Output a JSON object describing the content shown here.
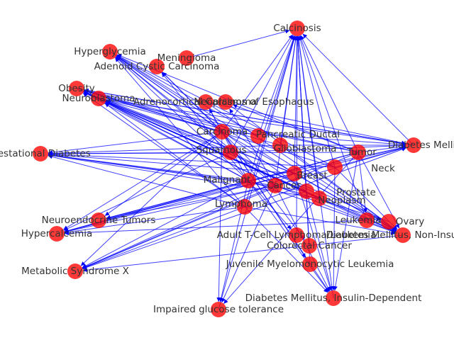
{
  "graph": {
    "edge_color": "#0000ff",
    "node_color": "#ff0000",
    "label_color": "#333333",
    "nodes": [
      {
        "id": "calcinosis",
        "label": "Calcinosis"
      },
      {
        "id": "hyperglycemia",
        "label": "Hyperglycemia"
      },
      {
        "id": "meningioma",
        "label": "Meningioma"
      },
      {
        "id": "adenoid-cystic",
        "label": "Adenoid Cystic Carcinoma"
      },
      {
        "id": "obesity",
        "label": "Obesity"
      },
      {
        "id": "neuroblastoma",
        "label": "Neuroblastoma"
      },
      {
        "id": "adrenal",
        "label": "Adrenocortical Carcinoma"
      },
      {
        "id": "esophagus",
        "label": "Neoplasms of Esophagus"
      },
      {
        "id": "gestational",
        "label": "Gestational Diabetes"
      },
      {
        "id": "dm-type2",
        "label": "Diabetes Mellitus"
      },
      {
        "id": "carcinoma",
        "label": "Carcinoma"
      },
      {
        "id": "pancreatic-ductal",
        "label": "Pancreatic Ductal"
      },
      {
        "id": "neuroendocrine",
        "label": "Neuroendocrine Tumors"
      },
      {
        "id": "hypercalcemia",
        "label": "Hypercalcemia"
      },
      {
        "id": "metabolic",
        "label": "Metabolic Syndrome X"
      },
      {
        "id": "impaired-glucose",
        "label": "Impaired glucose tolerance"
      },
      {
        "id": "dm-insulin-dep",
        "label": "Diabetes Mellitus, Insulin-Dependent"
      },
      {
        "id": "jmml",
        "label": "Juvenile Myelomonocytic Leukemia"
      },
      {
        "id": "colorectal",
        "label": "Colorectal Cancer"
      },
      {
        "id": "atll",
        "label": "Adult T-Cell Lymphoma/Leukemia"
      },
      {
        "id": "dm-non-insulin",
        "label": "Diabetes Mellitus, Non-Insulin"
      },
      {
        "id": "ovary",
        "label": "Ovary"
      },
      {
        "id": "leukemia",
        "label": "Leukemia"
      },
      {
        "id": "neoplasm",
        "label": "Neoplasm"
      },
      {
        "id": "prostate",
        "label": "Prostate"
      },
      {
        "id": "neck",
        "label": "Neck"
      },
      {
        "id": "tumor",
        "label": "Tumor"
      },
      {
        "id": "squamous",
        "label": "Squamous"
      },
      {
        "id": "breast",
        "label": "Breast"
      },
      {
        "id": "malignant",
        "label": "Malignant"
      },
      {
        "id": "cancer",
        "label": "Cancer"
      },
      {
        "id": "lymphoma",
        "label": "Lymphoma"
      },
      {
        "id": "glioblastoma",
        "label": "Glioblastoma"
      }
    ],
    "edges": [
      [
        "carcinoma",
        "calcinosis"
      ],
      [
        "pancreatic-ductal",
        "calcinosis"
      ],
      [
        "malignant",
        "calcinosis"
      ],
      [
        "cancer",
        "calcinosis"
      ],
      [
        "breast",
        "calcinosis"
      ],
      [
        "tumor",
        "calcinosis"
      ],
      [
        "neck",
        "calcinosis"
      ],
      [
        "prostate",
        "calcinosis"
      ],
      [
        "neoplasm",
        "calcinosis"
      ],
      [
        "leukemia",
        "calcinosis"
      ],
      [
        "lymphoma",
        "calcinosis"
      ],
      [
        "squamous",
        "calcinosis"
      ],
      [
        "glioblastoma",
        "calcinosis"
      ],
      [
        "colorectal",
        "calcinosis"
      ],
      [
        "jmml",
        "calcinosis"
      ],
      [
        "dm-insulin-dep",
        "calcinosis"
      ],
      [
        "impaired-glucose",
        "calcinosis"
      ],
      [
        "meningioma",
        "calcinosis"
      ],
      [
        "dm-type2",
        "calcinosis"
      ],
      [
        "atll",
        "calcinosis"
      ],
      [
        "carcinoma",
        "hyperglycemia"
      ],
      [
        "malignant",
        "hyperglycemia"
      ],
      [
        "cancer",
        "hyperglycemia"
      ],
      [
        "breast",
        "hyperglycemia"
      ],
      [
        "tumor",
        "hyperglycemia"
      ],
      [
        "neck",
        "hyperglycemia"
      ],
      [
        "squamous",
        "hyperglycemia"
      ],
      [
        "lymphoma",
        "hyperglycemia"
      ],
      [
        "pancreatic-ductal",
        "hyperglycemia"
      ],
      [
        "prostate",
        "hyperglycemia"
      ],
      [
        "carcinoma",
        "obesity"
      ],
      [
        "malignant",
        "obesity"
      ],
      [
        "cancer",
        "obesity"
      ],
      [
        "breast",
        "obesity"
      ],
      [
        "tumor",
        "obesity"
      ],
      [
        "neck",
        "obesity"
      ],
      [
        "squamous",
        "obesity"
      ],
      [
        "lymphoma",
        "obesity"
      ],
      [
        "pancreatic-ductal",
        "obesity"
      ],
      [
        "prostate",
        "obesity"
      ],
      [
        "glioblastoma",
        "obesity"
      ],
      [
        "leukemia",
        "obesity"
      ],
      [
        "neoplasm",
        "obesity"
      ],
      [
        "ovary",
        "obesity"
      ],
      [
        "dm-type2",
        "obesity"
      ],
      [
        "carcinoma",
        "neuroblastoma"
      ],
      [
        "malignant",
        "neuroblastoma"
      ],
      [
        "cancer",
        "neuroblastoma"
      ],
      [
        "breast",
        "neuroblastoma"
      ],
      [
        "tumor",
        "neuroblastoma"
      ],
      [
        "lymphoma",
        "neuroblastoma"
      ],
      [
        "carcinoma",
        "gestational"
      ],
      [
        "malignant",
        "gestational"
      ],
      [
        "cancer",
        "gestational"
      ],
      [
        "breast",
        "gestational"
      ],
      [
        "tumor",
        "gestational"
      ],
      [
        "neck",
        "gestational"
      ],
      [
        "squamous",
        "gestational"
      ],
      [
        "lymphoma",
        "gestational"
      ],
      [
        "prostate",
        "gestational"
      ],
      [
        "neoplasm",
        "gestational"
      ],
      [
        "glioblastoma",
        "gestational"
      ],
      [
        "carcinoma",
        "dm-type2"
      ],
      [
        "malignant",
        "dm-type2"
      ],
      [
        "cancer",
        "dm-type2"
      ],
      [
        "breast",
        "dm-type2"
      ],
      [
        "tumor",
        "dm-type2"
      ],
      [
        "neck",
        "dm-type2"
      ],
      [
        "squamous",
        "dm-type2"
      ],
      [
        "lymphoma",
        "dm-type2"
      ],
      [
        "glioblastoma",
        "dm-type2"
      ],
      [
        "neuroblastoma",
        "dm-type2"
      ],
      [
        "adrenal",
        "dm-type2"
      ],
      [
        "obesity",
        "dm-type2"
      ],
      [
        "carcinoma",
        "hypercalcemia"
      ],
      [
        "malignant",
        "hypercalcemia"
      ],
      [
        "cancer",
        "hypercalcemia"
      ],
      [
        "breast",
        "hypercalcemia"
      ],
      [
        "tumor",
        "hypercalcemia"
      ],
      [
        "lymphoma",
        "hypercalcemia"
      ],
      [
        "squamous",
        "hypercalcemia"
      ],
      [
        "leukemia",
        "hypercalcemia"
      ],
      [
        "carcinoma",
        "metabolic"
      ],
      [
        "malignant",
        "metabolic"
      ],
      [
        "cancer",
        "metabolic"
      ],
      [
        "breast",
        "metabolic"
      ],
      [
        "tumor",
        "metabolic"
      ],
      [
        "lymphoma",
        "metabolic"
      ],
      [
        "prostate",
        "metabolic"
      ],
      [
        "dm-non-insulin",
        "metabolic"
      ],
      [
        "carcinoma",
        "impaired-glucose"
      ],
      [
        "malignant",
        "impaired-glucose"
      ],
      [
        "cancer",
        "impaired-glucose"
      ],
      [
        "tumor",
        "impaired-glucose"
      ],
      [
        "carcinoma",
        "dm-insulin-dep"
      ],
      [
        "malignant",
        "dm-insulin-dep"
      ],
      [
        "cancer",
        "dm-insulin-dep"
      ],
      [
        "breast",
        "dm-insulin-dep"
      ],
      [
        "tumor",
        "dm-insulin-dep"
      ],
      [
        "lymphoma",
        "dm-insulin-dep"
      ],
      [
        "neck",
        "dm-insulin-dep"
      ],
      [
        "prostate",
        "dm-insulin-dep"
      ],
      [
        "carcinoma",
        "dm-non-insulin"
      ],
      [
        "malignant",
        "dm-non-insulin"
      ],
      [
        "cancer",
        "dm-non-insulin"
      ],
      [
        "breast",
        "dm-non-insulin"
      ],
      [
        "tumor",
        "dm-non-insulin"
      ],
      [
        "neck",
        "dm-non-insulin"
      ],
      [
        "squamous",
        "dm-non-insulin"
      ],
      [
        "lymphoma",
        "dm-non-insulin"
      ],
      [
        "glioblastoma",
        "dm-non-insulin"
      ],
      [
        "neuroblastoma",
        "dm-non-insulin"
      ],
      [
        "adrenal",
        "dm-non-insulin"
      ],
      [
        "esophagus",
        "dm-non-insulin"
      ],
      [
        "obesity",
        "dm-non-insulin"
      ],
      [
        "hyperglycemia",
        "dm-non-insulin"
      ],
      [
        "carcinoma",
        "neuroendocrine"
      ],
      [
        "malignant",
        "neuroendocrine"
      ],
      [
        "cancer",
        "neuroendocrine"
      ],
      [
        "breast",
        "neuroendocrine"
      ],
      [
        "tumor",
        "neuroendocrine"
      ],
      [
        "carcinoma",
        "adenoid-cystic"
      ],
      [
        "malignant",
        "adenoid-cystic"
      ],
      [
        "cancer",
        "adenoid-cystic"
      ],
      [
        "carcinoma",
        "adrenal"
      ],
      [
        "malignant",
        "adrenal"
      ],
      [
        "cancer",
        "esophagus"
      ],
      [
        "tumor",
        "esophagus"
      ],
      [
        "carcinoma",
        "jmml"
      ],
      [
        "carcinoma",
        "colorectal"
      ],
      [
        "malignant",
        "atll"
      ],
      [
        "cancer",
        "ovary"
      ],
      [
        "tumor",
        "leukemia"
      ]
    ]
  }
}
